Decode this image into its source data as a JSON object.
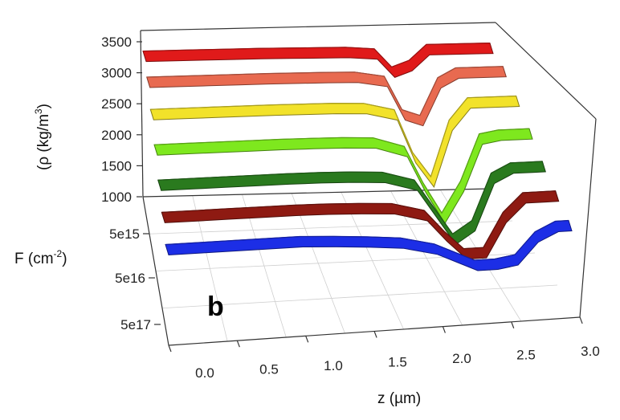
{
  "chart_data": {
    "type": "surface-3d-ribbons",
    "panel_label": "b",
    "rho_axis": {
      "label": "(ρ (kg/m",
      "label_sup": "3",
      "label_end": ")",
      "ticks": [
        "3500",
        "3000",
        "2500",
        "2000",
        "1500",
        "1000"
      ],
      "tick_values": [
        3500,
        3000,
        2500,
        2000,
        1500,
        1000
      ],
      "range": [
        1000,
        3500
      ]
    },
    "z_axis": {
      "label": "z (µm)",
      "ticks": [
        "0.0",
        "0.5",
        "1.0",
        "1.5",
        "2.0",
        "2.5",
        "3.0"
      ],
      "tick_values": [
        0.0,
        0.5,
        1.0,
        1.5,
        2.0,
        2.5,
        3.0
      ],
      "range": [
        0.0,
        3.0
      ]
    },
    "f_axis": {
      "label": "F (cm",
      "label_sup": "-2",
      "label_end": ")",
      "ticks": [
        "5e15",
        "5e16",
        "5e17"
      ]
    },
    "z_samples": [
      0.0,
      0.25,
      0.5,
      0.75,
      1.0,
      1.25,
      1.5,
      1.75,
      2.0,
      2.15,
      2.3,
      2.45,
      2.6,
      2.75,
      2.9,
      3.0
    ],
    "series": [
      {
        "color": "#e01a1a",
        "values": [
          3350,
          3350,
          3350,
          3350,
          3350,
          3345,
          3340,
          3335,
          3300,
          3000,
          3100,
          3350,
          3350,
          3350,
          3350,
          3350
        ]
      },
      {
        "color": "#e86a50",
        "values": [
          3150,
          3150,
          3150,
          3150,
          3150,
          3145,
          3140,
          3130,
          3050,
          2500,
          2400,
          3000,
          3150,
          3150,
          3150,
          3150
        ]
      },
      {
        "color": "#f2e22a",
        "values": [
          2850,
          2850,
          2850,
          2850,
          2850,
          2845,
          2840,
          2820,
          2700,
          2000,
          1600,
          2500,
          2850,
          2850,
          2850,
          2850
        ]
      },
      {
        "color": "#7ee81e",
        "values": [
          2500,
          2500,
          2500,
          2500,
          2500,
          2495,
          2485,
          2460,
          2300,
          1700,
          1200,
          1700,
          2450,
          2500,
          2500,
          2500
        ]
      },
      {
        "color": "#2a7a1e",
        "values": [
          2150,
          2150,
          2150,
          2150,
          2150,
          2145,
          2130,
          2100,
          1950,
          1500,
          1050,
          1250,
          2000,
          2150,
          2150,
          2150
        ]
      },
      {
        "color": "#8e1a12",
        "values": [
          1850,
          1850,
          1850,
          1850,
          1850,
          1840,
          1820,
          1790,
          1650,
          1300,
          1000,
          1000,
          1550,
          1850,
          1850,
          1850
        ]
      },
      {
        "color": "#1c2ee6",
        "values": [
          1550,
          1550,
          1550,
          1550,
          1550,
          1520,
          1480,
          1430,
          1300,
          1150,
          1000,
          1000,
          1050,
          1400,
          1550,
          1550
        ]
      }
    ]
  }
}
